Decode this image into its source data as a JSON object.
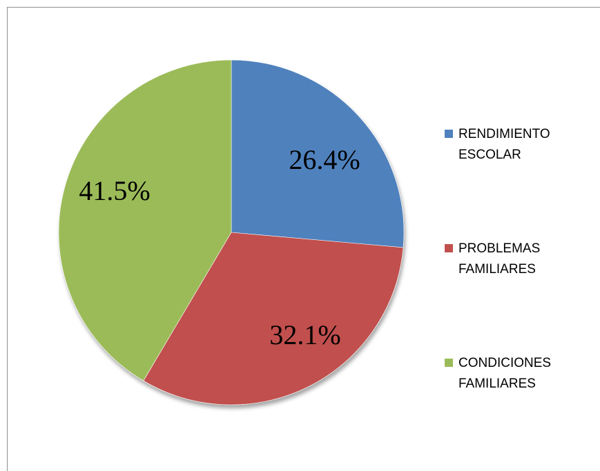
{
  "chart_data": {
    "type": "pie",
    "title": "",
    "categories": [
      "RENDIMIENTO\nESCOLAR",
      "PROBLEMAS\nFAMILIARES",
      "CONDICIONES\nFAMILIARES"
    ],
    "values": [
      26.4,
      32.1,
      41.5
    ],
    "data_labels": [
      "26.4%",
      "32.1%",
      "41.5%"
    ],
    "colors": [
      "#4f81bd",
      "#c0504d",
      "#9bbb59"
    ],
    "start_angle": "12 o'clock, clockwise",
    "legend_position": "right"
  }
}
